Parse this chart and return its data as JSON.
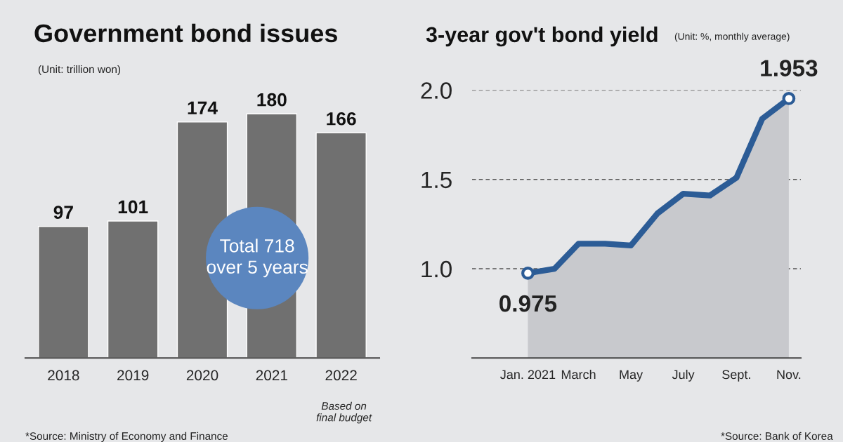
{
  "chart_data": [
    {
      "type": "bar",
      "title": "Government bond issues",
      "subtitle": "(Unit: trillion won)",
      "categories": [
        "2018",
        "2019",
        "2020",
        "2021",
        "2022"
      ],
      "values": [
        97,
        101,
        174,
        180,
        166
      ],
      "color": "#707070",
      "data_labels": true,
      "tick_labels": "x",
      "grid": false,
      "legend": false,
      "annotations": [
        "Total 718\nover 5 years",
        "Based on\nfinal budget",
        "*Source: Ministry of Economy and Finance"
      ]
    },
    {
      "type": "area",
      "title": "3-year gov't bond yield",
      "subtitle": "(Unit: %, monthly average)",
      "x": [
        "2021-01",
        "2021-02",
        "2021-03",
        "2021-04",
        "2021-05",
        "2021-06",
        "2021-07",
        "2021-08",
        "2021-09",
        "2021-10",
        "2021-11"
      ],
      "series": [
        {
          "color": "#2c5c96",
          "values": [
            0.975,
            1.0,
            1.14,
            1.14,
            1.13,
            1.31,
            1.42,
            1.41,
            1.51,
            1.84,
            1.953
          ],
          "value_labels": [
            "0.975",
            null,
            null,
            null,
            null,
            null,
            null,
            null,
            null,
            null,
            "1.953"
          ]
        }
      ],
      "xlim": [
        "2020-10-28",
        "2021-11-15"
      ],
      "ylim": [
        0.5,
        2.0
      ],
      "xticks": [
        {
          "value": "2021-01",
          "label": "Jan. 2021"
        },
        {
          "value": "2021-03",
          "label": "March"
        },
        {
          "value": "2021-05",
          "label": "May"
        },
        {
          "value": "2021-07",
          "label": "July"
        },
        {
          "value": "2021-09",
          "label": "Sept."
        },
        {
          "value": "2021-11",
          "label": "Nov."
        }
      ],
      "yticks": [
        {
          "value": 1,
          "label": "1.0"
        },
        {
          "value": 1.5,
          "label": "1.5"
        },
        {
          "value": 2,
          "label": "2.0"
        }
      ],
      "grid": "y",
      "line_style": "solid",
      "legend": false,
      "annotations": [
        "*Source: Bank of Korea"
      ]
    }
  ]
}
